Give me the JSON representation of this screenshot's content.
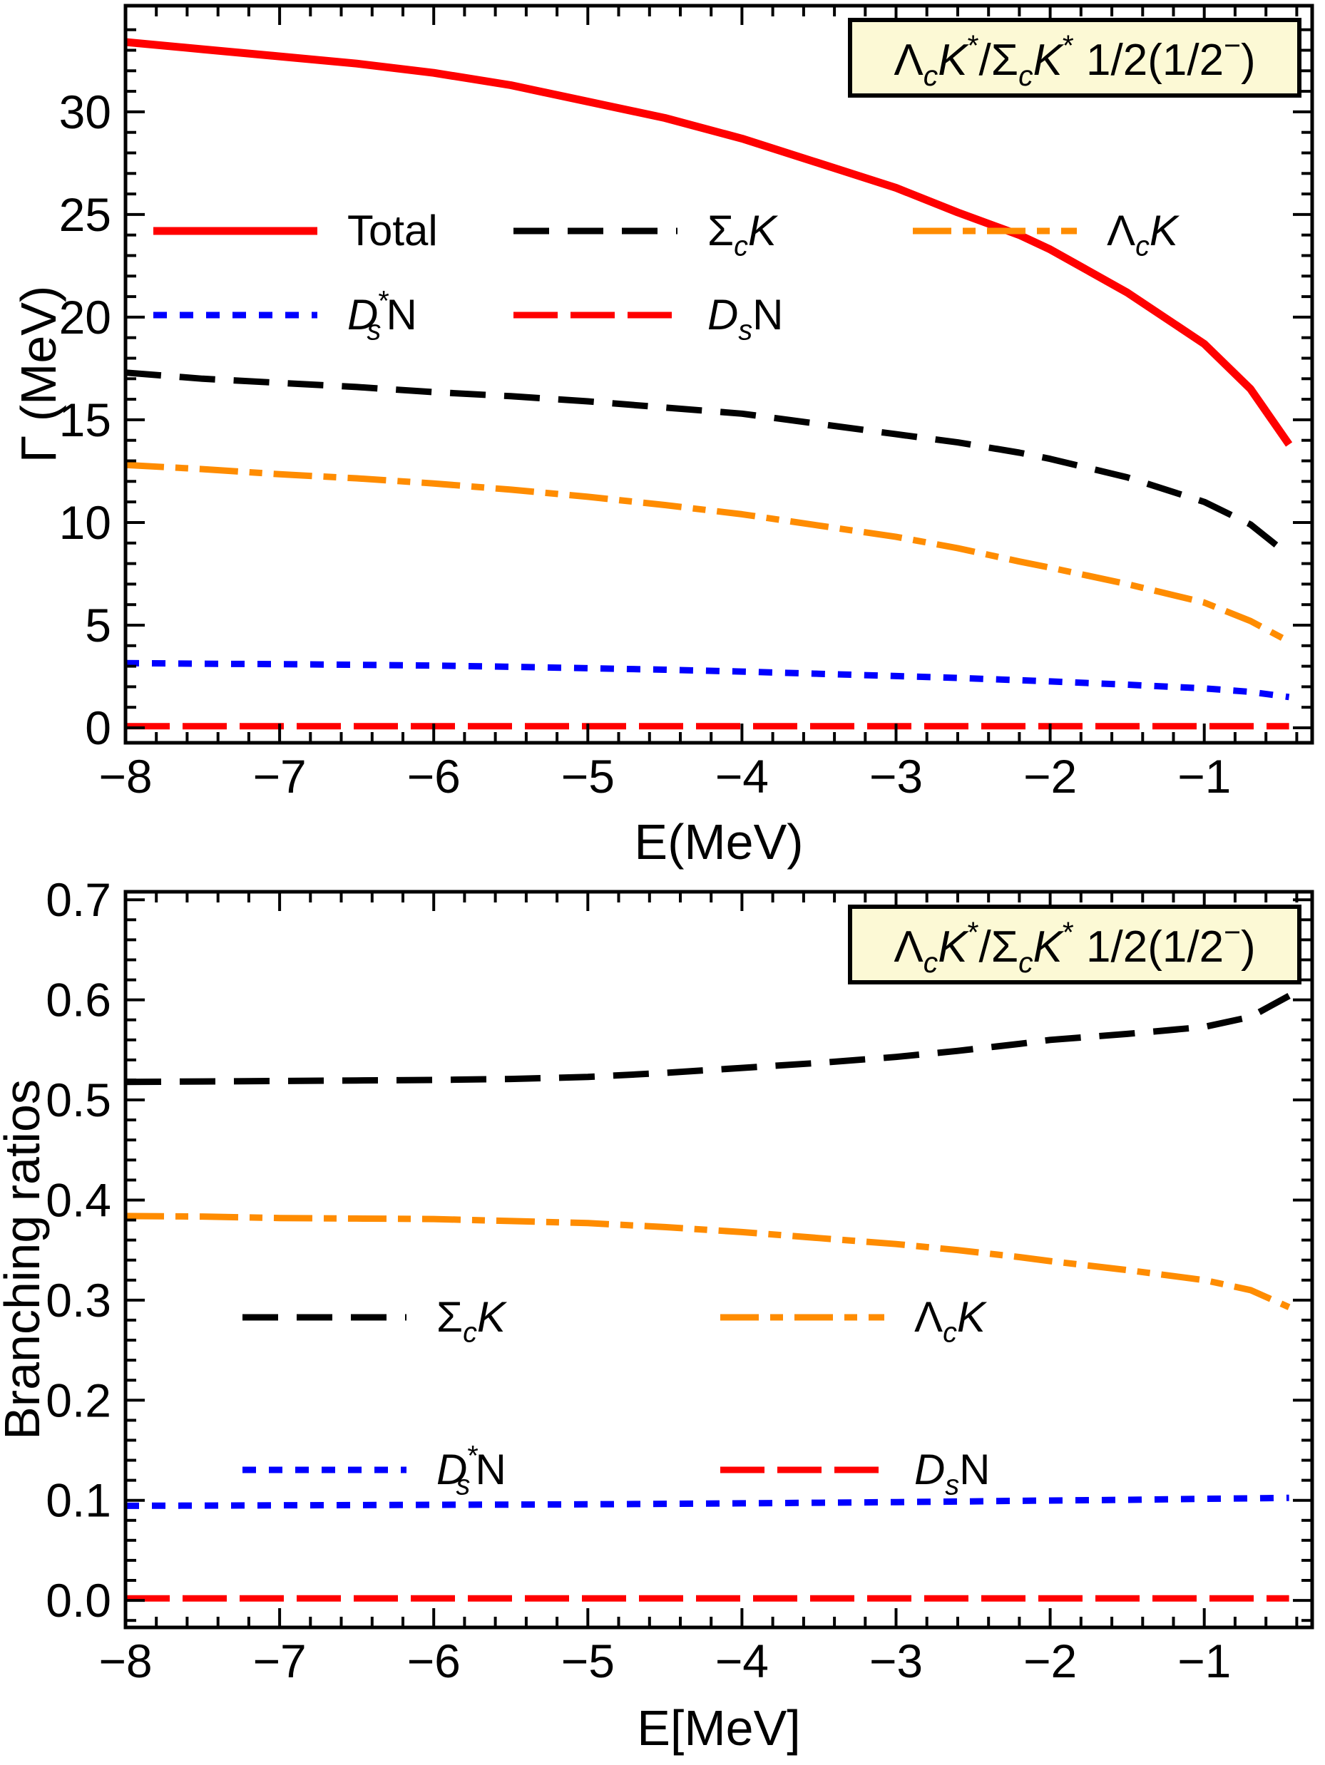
{
  "figure": {
    "background": "#ffffff",
    "frame_color": "#000000",
    "title_box_bg": "#FCF9D5",
    "title_text": "ΛcK*/ΣcK* 1/2(1/2−)"
  },
  "rich": {
    "title": [
      {
        "t": "Λ"
      },
      {
        "t": "c",
        "pos": "sub",
        "i": true
      },
      {
        "t": "K",
        "i": true
      },
      {
        "t": "*",
        "pos": "sup"
      },
      {
        "t": "/"
      },
      {
        "t": "Σ"
      },
      {
        "t": "c",
        "pos": "sub",
        "i": true
      },
      {
        "t": "K",
        "i": true
      },
      {
        "t": "*",
        "pos": "sup"
      },
      {
        "t": " 1/2(1/2"
      },
      {
        "t": "−",
        "pos": "sup"
      },
      {
        "t": ")"
      }
    ],
    "labels": {
      "total": [
        {
          "t": "Total"
        }
      ],
      "sigma": [
        {
          "t": "Σ"
        },
        {
          "t": "c",
          "pos": "sub",
          "i": true
        },
        {
          "t": "K",
          "i": true
        }
      ],
      "lambda": [
        {
          "t": "Λ"
        },
        {
          "t": "c",
          "pos": "sub",
          "i": true
        },
        {
          "t": "K",
          "i": true
        }
      ],
      "dstar": [
        {
          "t": "D",
          "i": true
        },
        {
          "t": "*",
          "pos": "sup"
        },
        {
          "t": "s",
          "pos": "sub",
          "i": true,
          "dx": -0.52
        },
        {
          "t": "N",
          "dx": 0.12
        }
      ],
      "ds": [
        {
          "t": "D",
          "i": true
        },
        {
          "t": "s",
          "pos": "sub",
          "i": true
        },
        {
          "t": "N"
        }
      ]
    }
  },
  "chart_data": [
    {
      "id": "decay-widths",
      "type": "line",
      "title": "ΛcK*/ΣcK* 1/2(1/2−)",
      "xlabel": "E(MeV)",
      "ylabel": "Γ (MeV)",
      "xlim": [
        -8.0,
        -0.3
      ],
      "ylim": [
        -0.73,
        35.17
      ],
      "xticks": [
        -8,
        -7,
        -6,
        -5,
        -4,
        -3,
        -2,
        -1
      ],
      "xminor_step": 0.2,
      "yticks": [
        0,
        5,
        10,
        15,
        20,
        25,
        30
      ],
      "yminor_step": 1,
      "ytick_decimals": 0,
      "grid": false,
      "x": [
        -8,
        -7.5,
        -7,
        -6.5,
        -6,
        -5.5,
        -5,
        -4.5,
        -4,
        -3.5,
        -3,
        -2.6,
        -2.2,
        -2,
        -1.5,
        -1,
        -0.7,
        -0.45
      ],
      "series": [
        {
          "key": "ds",
          "name": "DsN",
          "color": "#FF0000",
          "dash": [
            62,
            18
          ],
          "width": 9,
          "values": [
            0.08,
            0.08,
            0.08,
            0.08,
            0.08,
            0.08,
            0.08,
            0.08,
            0.08,
            0.08,
            0.08,
            0.08,
            0.08,
            0.08,
            0.08,
            0.08,
            0.08,
            0.08
          ]
        },
        {
          "key": "dstar",
          "name": "Ds*N",
          "color": "#0000FF",
          "dash": [
            19,
            18
          ],
          "width": 9,
          "values": [
            3.15,
            3.12,
            3.1,
            3.07,
            3.03,
            2.97,
            2.9,
            2.83,
            2.74,
            2.63,
            2.52,
            2.43,
            2.32,
            2.26,
            2.1,
            1.92,
            1.75,
            1.5
          ]
        },
        {
          "key": "lambda",
          "name": "ΛcK",
          "color": "#FF8C00",
          "dash": [
            54,
            16,
            18,
            16
          ],
          "width": 9,
          "values": [
            12.8,
            12.6,
            12.35,
            12.15,
            11.9,
            11.6,
            11.25,
            10.85,
            10.4,
            9.85,
            9.3,
            8.75,
            8.1,
            7.8,
            7.0,
            6.1,
            5.2,
            4.2
          ]
        },
        {
          "key": "sigma",
          "name": "ΣcK",
          "color": "#000000",
          "dash": [
            50,
            26
          ],
          "width": 9,
          "values": [
            17.3,
            17.0,
            16.8,
            16.6,
            16.35,
            16.15,
            15.9,
            15.6,
            15.3,
            14.8,
            14.3,
            13.9,
            13.4,
            13.1,
            12.2,
            11.0,
            9.9,
            8.4
          ]
        },
        {
          "key": "total",
          "name": "Total",
          "color": "#FF0000",
          "dash": [],
          "width": 11,
          "values": [
            33.4,
            33.05,
            32.7,
            32.35,
            31.9,
            31.3,
            30.5,
            29.7,
            28.7,
            27.5,
            26.3,
            25.1,
            24.0,
            23.3,
            21.2,
            18.7,
            16.5,
            13.8
          ]
        }
      ],
      "legend_rows": [
        [
          "total",
          "sigma",
          "lambda"
        ],
        [
          "dstar",
          "ds"
        ]
      ]
    },
    {
      "id": "branching-ratios",
      "type": "line",
      "title": "ΛcK*/ΣcK* 1/2(1/2−)",
      "xlabel": "E[MeV]",
      "ylabel": "Branching ratios",
      "xlim": [
        -8.0,
        -0.3
      ],
      "ylim": [
        -0.027,
        0.708
      ],
      "xticks": [
        -8,
        -7,
        -6,
        -5,
        -4,
        -3,
        -2,
        -1
      ],
      "xminor_step": 0.2,
      "yticks": [
        0,
        0.1,
        0.2,
        0.3,
        0.4,
        0.5,
        0.6,
        0.7
      ],
      "yminor_step": 0.02,
      "ytick_decimals": 1,
      "grid": false,
      "x": [
        -8,
        -7.5,
        -7,
        -6.5,
        -6,
        -5.5,
        -5,
        -4.5,
        -4,
        -3.5,
        -3,
        -2.6,
        -2.2,
        -2,
        -1.5,
        -1,
        -0.7,
        -0.45
      ],
      "series": [
        {
          "key": "ds",
          "name": "DsN",
          "color": "#FF0000",
          "dash": [
            62,
            18
          ],
          "width": 9,
          "values": [
            0.002,
            0.002,
            0.002,
            0.002,
            0.002,
            0.002,
            0.002,
            0.002,
            0.002,
            0.002,
            0.002,
            0.002,
            0.002,
            0.002,
            0.002,
            0.002,
            0.002,
            0.002
          ]
        },
        {
          "key": "dstar",
          "name": "Ds*N",
          "color": "#0000FF",
          "dash": [
            19,
            18
          ],
          "width": 9,
          "values": [
            0.0945,
            0.0947,
            0.095,
            0.0952,
            0.0955,
            0.0957,
            0.096,
            0.0965,
            0.097,
            0.0976,
            0.0982,
            0.0988,
            0.0995,
            0.0998,
            0.1005,
            0.1015,
            0.102,
            0.1025
          ]
        },
        {
          "key": "lambda",
          "name": "ΛcK",
          "color": "#FF8C00",
          "dash": [
            54,
            16,
            18,
            16
          ],
          "width": 9,
          "values": [
            0.384,
            0.3835,
            0.382,
            0.3815,
            0.381,
            0.379,
            0.377,
            0.373,
            0.368,
            0.362,
            0.356,
            0.35,
            0.343,
            0.339,
            0.33,
            0.32,
            0.31,
            0.293
          ]
        },
        {
          "key": "sigma",
          "name": "ΣcK",
          "color": "#000000",
          "dash": [
            50,
            26
          ],
          "width": 9,
          "values": [
            0.518,
            0.5185,
            0.519,
            0.5195,
            0.52,
            0.521,
            0.523,
            0.527,
            0.532,
            0.537,
            0.543,
            0.549,
            0.556,
            0.56,
            0.566,
            0.573,
            0.583,
            0.604
          ]
        }
      ],
      "legend_rows": [
        [
          "sigma",
          "lambda"
        ],
        [
          "dstar",
          "ds"
        ]
      ]
    }
  ]
}
